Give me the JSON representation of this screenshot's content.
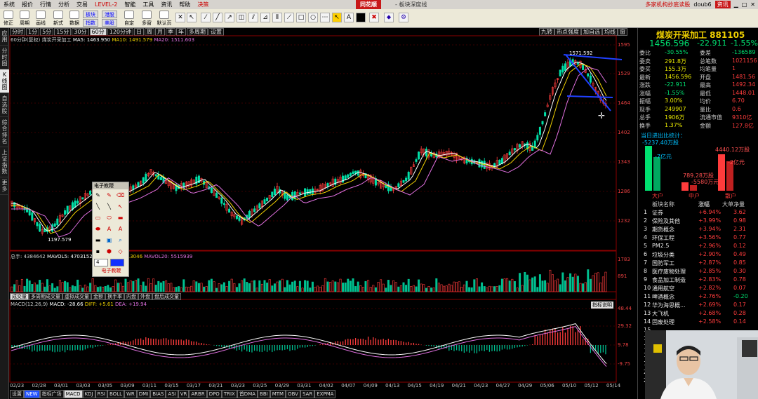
{
  "menu": [
    "系统",
    "报价",
    "行情",
    "分析",
    "交易",
    "LEVEL-2",
    "智能",
    "工具",
    "资讯",
    "帮助",
    "决策"
  ],
  "brand": "同花顺",
  "brand_sub": "- 板块深度线",
  "menu_right": [
    "多家机构抄底读股",
    "doub6",
    "资讯"
  ],
  "toolbar": {
    "buttons": [
      "修正",
      "周期",
      "画线",
      "新式",
      "数据",
      "指数",
      "美股",
      "自定",
      "多窗",
      "默认页"
    ],
    "board_label": "板块",
    "stock_label": "港股"
  },
  "leftbar": [
    "应用",
    "分时图",
    "K线图",
    "自选股",
    "综合排名",
    "上证指数",
    "更多"
  ],
  "periods": [
    "分时",
    "1分",
    "5分",
    "15分",
    "30分",
    "60分",
    "120分钟",
    "日",
    "周",
    "月",
    "季",
    "年",
    "多周期",
    "设置"
  ],
  "periods_active": "60分",
  "righttabs": [
    "九转",
    "热点强度",
    "加自选",
    "均线",
    "窗"
  ],
  "ma_legend": {
    "name": "60分钟(复权) 煤炭开采加工",
    "ma5": "MA5: 1463.950",
    "ma10": "MA10: 1491.579",
    "ma20": "MA20: 1511.603"
  },
  "colors": {
    "up": "#ff3c3c",
    "down": "#00e0a8",
    "ma5": "#ffffff",
    "ma10": "#f0d000",
    "ma20": "#e070e0",
    "vol_up": "#ff3c3c",
    "vol_down": "#00c090",
    "blue": "#2040ff"
  },
  "price_axis": [
    "1595",
    "1529",
    "1464",
    "1402",
    "1343",
    "1286",
    "1232"
  ],
  "high_label": "1571.592",
  "low_label": "1197.579",
  "vol_legend": {
    "total": "总手: 4384642",
    "ma5": "MAVOL5: 4703152",
    "ma10": "MAVOL10: 5113046",
    "ma20": "MAVOL20: 5515939"
  },
  "vol_axis": [
    "1783",
    "891"
  ],
  "vol_tabs": [
    "成交量",
    "多周期成交量",
    "虚拟成交量",
    "金额",
    "换手率",
    "内盘",
    "外盘",
    "盘后成交量"
  ],
  "macd_legend": {
    "name": "MACD(12,26,9)",
    "macd": "MACD: -28.66",
    "diff": "DIFF: +5.61",
    "dea": "DEA: +19.94"
  },
  "macd_axis": [
    "48.44",
    "29.32",
    "9.78",
    "-9.75"
  ],
  "macd_btn": "指标说明",
  "xaxis": [
    "02/23",
    "02/28",
    "03/01",
    "03/03",
    "03/05",
    "03/09",
    "03/11",
    "03/15",
    "03/17",
    "03/21",
    "03/23",
    "03/25",
    "03/29",
    "03/31",
    "04/02",
    "04/07",
    "04/09",
    "04/13",
    "04/15",
    "04/19",
    "04/21",
    "04/23",
    "04/27",
    "04/29",
    "05/06",
    "05/10",
    "05/12",
    "05/14"
  ],
  "bottomtabs": [
    "设置",
    "NEW",
    "指标广场",
    "MACD",
    "KDJ",
    "RSI",
    "BOLL",
    "WR",
    "DMI",
    "BIAS",
    "ASI",
    "VR",
    "ARBR",
    "DPO",
    "TRIX",
    "首DMA",
    "BBI",
    "MTM",
    "OBV",
    "SAR",
    "EXPMA"
  ],
  "bottomtabs_active": "MACD",
  "dialog": {
    "title": "电子教鞭",
    "size": "4",
    "footer": "电子教鞭"
  },
  "quote": {
    "title": "煤炭开采加工 881105",
    "price": "1456.596",
    "change": "-22.911",
    "pct": "-1.55%",
    "rows": [
      [
        "委比",
        "-30.55%",
        "委差",
        "-136589"
      ],
      [
        "委卖",
        "291.8万",
        "总笔数",
        "1021156"
      ],
      [
        "委买",
        "155.3万",
        "均笔量",
        "1"
      ],
      [
        "最新",
        "1456.596",
        "开盘",
        "1481.56"
      ],
      [
        "涨跌",
        "-22.911",
        "最高",
        "1492.34"
      ],
      [
        "涨幅",
        "-1.55%",
        "最低",
        "1448.01"
      ],
      [
        "振幅",
        "3.00%",
        "均价",
        "6.70"
      ],
      [
        "现手",
        "249907",
        "量比",
        "0.6"
      ],
      [
        "总手",
        "1906万",
        "流通市值",
        "9310亿"
      ],
      [
        "换手",
        "1.37%",
        "金额",
        "127.8亿"
      ]
    ]
  },
  "flow": {
    "title": "当日进出比统计：",
    "total": "-5237.40万股",
    "a": "-7亿元",
    "b": "4440.12万股",
    "c": "789.28万股",
    "d": "-5580万元",
    "e": "-2亿元",
    "labels": [
      "大户",
      "中户",
      "散户"
    ]
  },
  "board_header": [
    "板块名称",
    "涨幅",
    "大单净量"
  ],
  "boards": [
    [
      "1",
      "证券",
      "+6.94%",
      "3.62"
    ],
    [
      "2",
      "保险及其他",
      "+3.99%",
      "0.98"
    ],
    [
      "3",
      "期货概念",
      "+3.94%",
      "2.31"
    ],
    [
      "4",
      "环保工程",
      "+3.56%",
      "0.77"
    ],
    [
      "5",
      "PM2.5",
      "+2.96%",
      "0.12"
    ],
    [
      "6",
      "垃圾分类",
      "+2.90%",
      "0.49"
    ],
    [
      "7",
      "国防军工",
      "+2.87%",
      "0.85"
    ],
    [
      "8",
      "医疗废物处理",
      "+2.85%",
      "0.30"
    ],
    [
      "9",
      "食品加工制造",
      "+2.83%",
      "0.78"
    ],
    [
      "10",
      "通用航空",
      "+2.82%",
      "0.07"
    ],
    [
      "11",
      "啤酒概念",
      "+2.76%",
      "-0.20"
    ],
    [
      "12",
      "华为海思概...",
      "+2.69%",
      "0.17"
    ],
    [
      "13",
      "大飞机",
      "+2.68%",
      "0.28"
    ],
    [
      "14",
      "固废处理",
      "+2.58%",
      "0.14"
    ],
    [
      "15",
      "",
      "",
      ""
    ],
    [
      "16",
      "",
      "",
      ""
    ],
    [
      "17",
      "",
      "",
      ""
    ],
    [
      "18",
      "",
      "",
      ""
    ],
    [
      "19",
      "",
      "",
      ""
    ],
    [
      "20",
      "",
      "",
      ""
    ],
    [
      "21",
      "",
      "",
      ""
    ]
  ]
}
